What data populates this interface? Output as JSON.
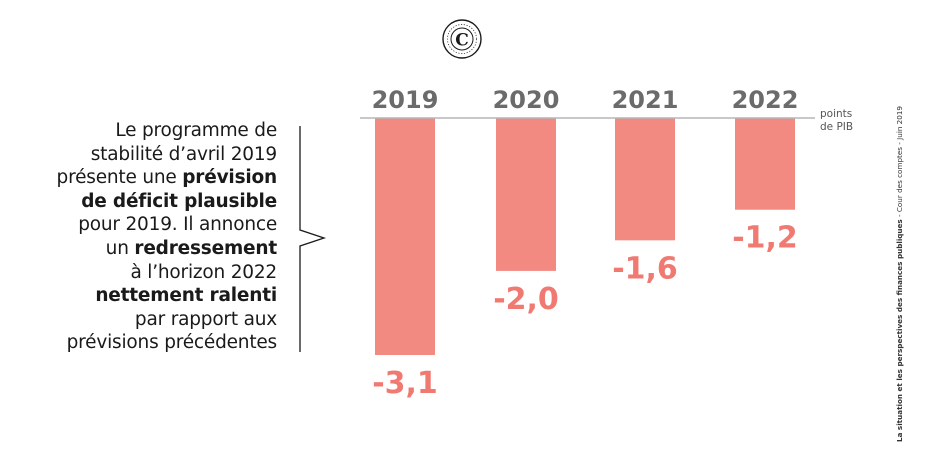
{
  "text": {
    "line1": "Le programme de",
    "line2": "stabilité d’avril 2019",
    "line3_pre": "présente une ",
    "line3_bold": "prévision",
    "line4_bold": "de déficit plausible",
    "line5": "pour 2019. Il annonce",
    "line6_pre": "un ",
    "line6_bold": "redressement",
    "line7": "à l’horizon 2022",
    "line8_bold": "nettement ralenti",
    "line9": "par rapport aux",
    "line10": "prévisions précédentes"
  },
  "units": {
    "line1": "points",
    "line2": "de PIB"
  },
  "side_note": {
    "bold": "La situation et les perspectives des finances publiques",
    "rest": " - Cour des comptes - Juin 2019"
  },
  "logo": {
    "icon": "cour-des-comptes-seal-icon",
    "letter": "C"
  },
  "colors": {
    "bar": "#f28a82",
    "value_label": "#f07a72",
    "year_label": "#6b6b6b",
    "baseline": "#b5b5b5"
  },
  "chart_data": {
    "type": "bar",
    "categories": [
      "2019",
      "2020",
      "2021",
      "2022"
    ],
    "values": [
      -3.1,
      -2.0,
      -1.6,
      -1.2
    ],
    "value_labels": [
      "-3,1",
      "-2,0",
      "-1,6",
      "-1,2"
    ],
    "ylabel": "points de PIB",
    "ylim": [
      -3.1,
      0
    ],
    "grid": false,
    "legend": "none"
  }
}
